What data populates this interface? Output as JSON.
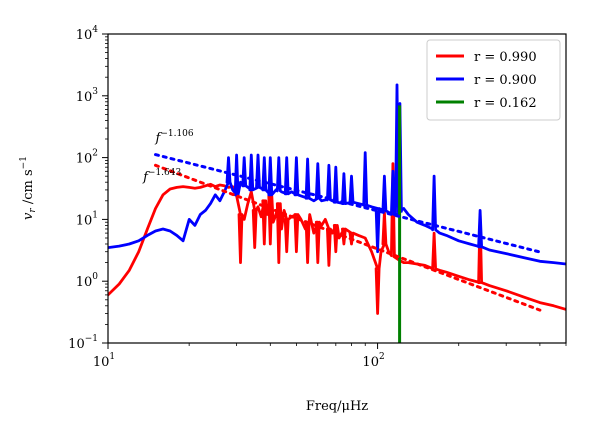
{
  "chart_data": {
    "type": "line",
    "title": "",
    "xlabel": "Freq/μHz",
    "ylabel": "v_r /cm s^-1",
    "xlabel_text": "Freq/μHz",
    "ylabel_main": "v",
    "ylabel_sub": "r",
    "ylabel_units": " /cm s",
    "ylabel_sup": "−1",
    "xscale": "log",
    "yscale": "log",
    "xlim": [
      10,
      500
    ],
    "ylim": [
      0.1,
      10000
    ],
    "grid": false,
    "legend_position": "top-right",
    "x_ticks": [
      {
        "value": 10,
        "base": "10",
        "exp": "1"
      },
      {
        "value": 100,
        "base": "10",
        "exp": "2"
      }
    ],
    "y_ticks": [
      {
        "value": 0.1,
        "base": "10",
        "exp": "−1"
      },
      {
        "value": 1,
        "base": "10",
        "exp": "0"
      },
      {
        "value": 10,
        "base": "10",
        "exp": "1"
      },
      {
        "value": 100,
        "base": "10",
        "exp": "2"
      },
      {
        "value": 1000,
        "base": "10",
        "exp": "3"
      },
      {
        "value": 10000,
        "base": "10",
        "exp": "4"
      }
    ],
    "series": [
      {
        "name": "r = 0.990",
        "color": "#ff0000",
        "points": [
          [
            10,
            0.6
          ],
          [
            11,
            0.9
          ],
          [
            12,
            1.5
          ],
          [
            13,
            3
          ],
          [
            14,
            7
          ],
          [
            15,
            15
          ],
          [
            16,
            25
          ],
          [
            17,
            31
          ],
          [
            18,
            33
          ],
          [
            19,
            34
          ],
          [
            20,
            33
          ],
          [
            21,
            32
          ],
          [
            22,
            33
          ],
          [
            23,
            35
          ],
          [
            24,
            37
          ],
          [
            25,
            34
          ],
          [
            26,
            36
          ],
          [
            27,
            35
          ],
          [
            28,
            33
          ],
          [
            29,
            34
          ],
          [
            30,
            24
          ],
          [
            31,
            12
          ],
          [
            32,
            10
          ],
          [
            33,
            18
          ],
          [
            34,
            28
          ],
          [
            35,
            14
          ],
          [
            36,
            16
          ],
          [
            37,
            11
          ],
          [
            38,
            20
          ],
          [
            39,
            12
          ],
          [
            40,
            24
          ],
          [
            41,
            9
          ],
          [
            42,
            12
          ],
          [
            43,
            18
          ],
          [
            44,
            7
          ],
          [
            45,
            14
          ],
          [
            46,
            10
          ],
          [
            48,
            11
          ],
          [
            50,
            12
          ],
          [
            52,
            10
          ],
          [
            54,
            7
          ],
          [
            56,
            12
          ],
          [
            58,
            6
          ],
          [
            60,
            9
          ],
          [
            62,
            8
          ],
          [
            64,
            10
          ],
          [
            66,
            7
          ],
          [
            68,
            6
          ],
          [
            70,
            8
          ],
          [
            72,
            5
          ],
          [
            75,
            7
          ],
          [
            80,
            6
          ],
          [
            85,
            5.5
          ],
          [
            90,
            5
          ],
          [
            95,
            3
          ],
          [
            100,
            1.6
          ],
          [
            103,
            3
          ],
          [
            106,
            4
          ],
          [
            110,
            3
          ],
          [
            115,
            2.5
          ],
          [
            120,
            2.2
          ],
          [
            125,
            2
          ],
          [
            130,
            2
          ],
          [
            140,
            1.9
          ],
          [
            150,
            1.8
          ],
          [
            160,
            1.6
          ],
          [
            170,
            1.5
          ],
          [
            180,
            1.4
          ],
          [
            200,
            1.2
          ],
          [
            220,
            1.05
          ],
          [
            240,
            0.95
          ],
          [
            260,
            0.85
          ],
          [
            300,
            0.7
          ],
          [
            350,
            0.55
          ],
          [
            400,
            0.45
          ],
          [
            450,
            0.4
          ],
          [
            500,
            0.35
          ]
        ],
        "spikes": [
          [
            31,
            2
          ],
          [
            35,
            3.5
          ],
          [
            38,
            4
          ],
          [
            40,
            4
          ],
          [
            43,
            2
          ],
          [
            46,
            3
          ],
          [
            50,
            3
          ],
          [
            55,
            2
          ],
          [
            60,
            2
          ],
          [
            66,
            1.8
          ],
          [
            70,
            3
          ],
          [
            75,
            4
          ],
          [
            80,
            4
          ],
          [
            100,
            0.3
          ],
          [
            106,
            13
          ],
          [
            114,
            80
          ],
          [
            162,
            6
          ],
          [
            240,
            12
          ]
        ]
      },
      {
        "name": "r = 0.900",
        "color": "#0000ff",
        "points": [
          [
            10,
            3.5
          ],
          [
            11,
            3.7
          ],
          [
            12,
            4
          ],
          [
            13,
            4.5
          ],
          [
            14,
            5.5
          ],
          [
            15,
            6.5
          ],
          [
            16,
            7
          ],
          [
            17,
            6.5
          ],
          [
            18,
            5.5
          ],
          [
            19,
            4.5
          ],
          [
            20,
            10
          ],
          [
            21,
            8
          ],
          [
            22,
            12
          ],
          [
            23,
            14
          ],
          [
            24,
            18
          ],
          [
            25,
            25
          ],
          [
            26,
            20
          ],
          [
            27,
            28
          ],
          [
            28,
            40
          ],
          [
            29,
            30
          ],
          [
            30,
            25
          ],
          [
            31,
            40
          ],
          [
            32,
            35
          ],
          [
            34,
            30
          ],
          [
            36,
            33
          ],
          [
            38,
            30
          ],
          [
            40,
            25
          ],
          [
            42,
            30
          ],
          [
            44,
            28
          ],
          [
            46,
            26
          ],
          [
            48,
            28
          ],
          [
            50,
            25
          ],
          [
            52,
            24
          ],
          [
            55,
            22
          ],
          [
            58,
            20
          ],
          [
            60,
            22
          ],
          [
            62,
            20
          ],
          [
            65,
            21
          ],
          [
            68,
            20
          ],
          [
            70,
            19
          ],
          [
            75,
            18
          ],
          [
            80,
            19
          ],
          [
            85,
            18
          ],
          [
            90,
            17
          ],
          [
            95,
            16
          ],
          [
            100,
            15
          ],
          [
            105,
            14
          ],
          [
            110,
            13
          ],
          [
            115,
            12
          ],
          [
            118,
            12
          ],
          [
            122,
            14
          ],
          [
            125,
            15
          ],
          [
            130,
            12
          ],
          [
            140,
            9
          ],
          [
            150,
            8
          ],
          [
            160,
            7
          ],
          [
            170,
            6
          ],
          [
            180,
            5.5
          ],
          [
            200,
            4.5
          ],
          [
            220,
            4
          ],
          [
            240,
            3.6
          ],
          [
            260,
            3.2
          ],
          [
            300,
            2.8
          ],
          [
            350,
            2.4
          ],
          [
            400,
            2.1
          ],
          [
            450,
            2
          ],
          [
            500,
            1.9
          ]
        ],
        "spikes": [
          [
            28,
            100
          ],
          [
            30,
            110
          ],
          [
            32,
            100
          ],
          [
            34,
            110
          ],
          [
            36,
            110
          ],
          [
            38,
            100
          ],
          [
            40,
            100
          ],
          [
            43,
            100
          ],
          [
            46,
            100
          ],
          [
            50,
            100
          ],
          [
            55,
            95
          ],
          [
            60,
            80
          ],
          [
            66,
            75
          ],
          [
            70,
            70
          ],
          [
            75,
            55
          ],
          [
            80,
            50
          ],
          [
            90,
            120
          ],
          [
            100,
            3
          ],
          [
            106,
            50
          ],
          [
            114,
            60
          ],
          [
            118,
            1500
          ],
          [
            121,
            750
          ],
          [
            162,
            50
          ],
          [
            240,
            14
          ]
        ]
      },
      {
        "name": "r = 0.162",
        "color": "#008000",
        "points": [
          [
            119.2,
            0.1
          ],
          [
            119.2,
            700
          ],
          [
            120.8,
            700
          ],
          [
            120.8,
            0.1
          ]
        ],
        "spikes": []
      }
    ],
    "fits": [
      {
        "series": "r = 0.900",
        "color": "#0000ff",
        "x0": 15,
        "x1": 400,
        "y0": 112,
        "label_base": "f",
        "label_exp": "−1.106",
        "label_x": 15,
        "label_y": 180
      },
      {
        "series": "r = 0.990",
        "color": "#ff0000",
        "x0": 15,
        "x1": 400,
        "y0": 75,
        "label_base": "f",
        "label_exp": "−1.643",
        "label_x": 13.5,
        "label_y": 42
      }
    ]
  }
}
